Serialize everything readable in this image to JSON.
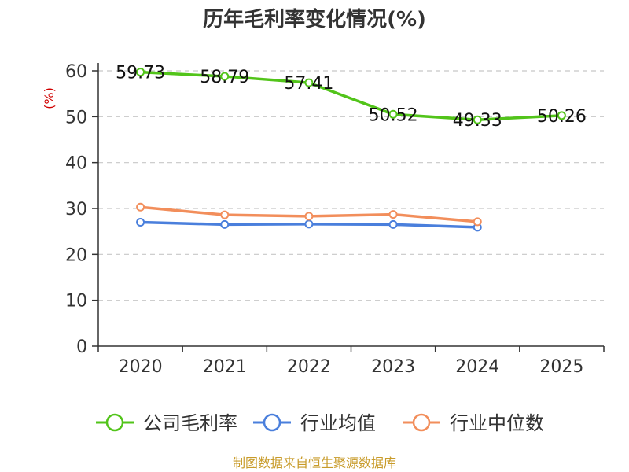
{
  "chart_data": {
    "type": "line",
    "title": "历年毛利率变化情况(%)",
    "ylabel": "(%)",
    "categories": [
      "2020",
      "2021",
      "2022",
      "2023",
      "2024",
      "2025"
    ],
    "ylim": [
      0,
      60
    ],
    "yticks": [
      0,
      10,
      20,
      30,
      40,
      50,
      60
    ],
    "grid": true,
    "legend_position": "bottom",
    "series": [
      {
        "name": "公司毛利率",
        "color": "#52c41a",
        "values": [
          59.73,
          58.79,
          57.41,
          50.52,
          49.33,
          50.26
        ],
        "labels": [
          "59.73",
          "58.79",
          "57.41",
          "50.52",
          "49.33",
          "50.26"
        ]
      },
      {
        "name": "行业均值",
        "color": "#4a7fdc",
        "values": [
          27.0,
          26.5,
          26.6,
          26.5,
          25.9,
          null
        ]
      },
      {
        "name": "行业中位数",
        "color": "#f28e5b",
        "values": [
          30.3,
          28.6,
          28.3,
          28.7,
          27.1,
          null
        ]
      }
    ]
  },
  "source": "制图数据来自恒生聚源数据库"
}
